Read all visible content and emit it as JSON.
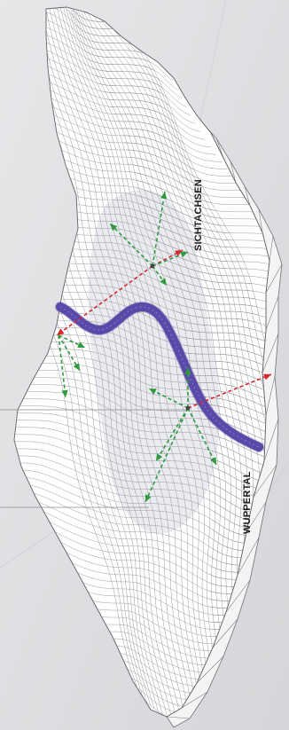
{
  "labels": {
    "sichtachsen": "SICHTACHSEN",
    "wuppertal": "WUPPERTAL"
  },
  "colors": {
    "background": "#dcdddf",
    "terrain_fill": "#ffffff",
    "terrain_edge": "#6f7176",
    "mesh_line": "#8a8c90",
    "valley_tint": "#e3e5ec",
    "river": "#5a49a8",
    "axis_red": "#d8262b",
    "axis_green": "#2f9a3e",
    "leader_line": "#8a8a8a"
  },
  "icons": {
    "viewpoint": "viewpoint-node-icon",
    "arrow": "arrowhead-icon"
  }
}
